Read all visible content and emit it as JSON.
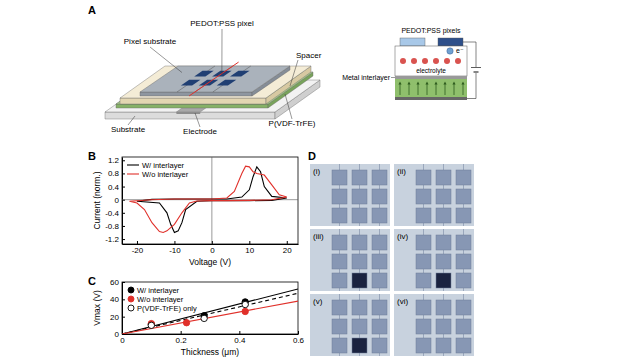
{
  "chart_data": [
    {
      "type": "line",
      "panel_label": "B",
      "x_label": "Voltage (V)",
      "y_label": "Current (norm.)",
      "xlim": [
        -24,
        23
      ],
      "xticks": [
        -20,
        -10,
        0,
        10,
        20
      ],
      "ylim": [
        -1.35,
        1.3
      ],
      "yticks": [
        -1.2,
        -0.8,
        -0.4,
        0,
        0.4,
        0.8,
        1.2
      ],
      "legend": "upper left",
      "series": [
        {
          "name": "W/ interlayer",
          "color": "#000000",
          "x": [
            0,
            4,
            8,
            10,
            11,
            12,
            13,
            14,
            16,
            20,
            16,
            10,
            4,
            0,
            -4,
            -7,
            -8,
            -9,
            -10,
            -11,
            -12,
            -14,
            -20,
            -16,
            -10,
            -4,
            0
          ],
          "values": [
            0.02,
            0.02,
            0.08,
            0.3,
            0.7,
            1.0,
            0.85,
            0.4,
            0.1,
            0.05,
            -0.02,
            -0.03,
            -0.03,
            -0.03,
            -0.05,
            -0.3,
            -0.7,
            -0.95,
            -1.0,
            -0.75,
            -0.4,
            -0.1,
            -0.05,
            0.01,
            0.02,
            0.02,
            0.02
          ]
        },
        {
          "name": "W/o interlayer",
          "color": "#e0302a",
          "x": [
            0,
            4,
            6,
            8,
            9,
            10,
            11,
            12,
            14,
            16,
            18,
            20,
            16,
            10,
            4,
            0,
            -4,
            -6,
            -8,
            -10,
            -12,
            -13,
            -14,
            -16,
            -18,
            -20,
            -22,
            -16,
            -10,
            -4,
            0
          ],
          "values": [
            0.02,
            0.05,
            0.25,
            0.8,
            1.02,
            1.0,
            0.85,
            0.8,
            0.75,
            0.45,
            0.15,
            0.08,
            0.0,
            -0.02,
            -0.03,
            -0.03,
            -0.04,
            -0.1,
            -0.4,
            -0.75,
            -0.95,
            -1.0,
            -0.97,
            -0.7,
            -0.3,
            -0.1,
            -0.05,
            0.0,
            0.02,
            0.02,
            0.02
          ]
        }
      ]
    },
    {
      "type": "scatter",
      "panel_label": "C",
      "x_label": "Thickness (μm)",
      "y_label": "Vmax (V)",
      "xlim": [
        0,
        0.6
      ],
      "xticks": [
        0,
        0.2,
        0.4,
        0.6
      ],
      "ylim": [
        0,
        60
      ],
      "yticks": [
        0,
        20,
        40,
        60
      ],
      "legend": "upper left",
      "series": [
        {
          "type": "line",
          "color": "#000000",
          "line_style": "solid",
          "x": [
            0,
            0.6
          ],
          "values": [
            0,
            52
          ]
        },
        {
          "type": "line",
          "color": "#000000",
          "line_style": "dashed",
          "x": [
            0,
            0.6
          ],
          "values": [
            0,
            47
          ]
        },
        {
          "type": "line",
          "color": "#e0302a",
          "line_style": "solid",
          "x": [
            0,
            0.6
          ],
          "values": [
            0,
            38
          ]
        },
        {
          "name": "W/ interlayer",
          "color": "#000000",
          "marker": "filled_circle",
          "x": [
            0.1,
            0.28,
            0.42
          ],
          "values": [
            11,
            21,
            37
          ]
        },
        {
          "name": "W/o interlayer",
          "color": "#e0302a",
          "marker": "filled_circle",
          "x": [
            0.1,
            0.22,
            0.42
          ],
          "values": [
            12,
            13,
            26
          ]
        },
        {
          "name": "P(VDF-TrFE) only",
          "color": "#000000",
          "marker": "open_circle",
          "x": [
            0.1,
            0.28,
            0.42
          ],
          "values": [
            10,
            18,
            34
          ]
        }
      ]
    }
  ],
  "diagram": {
    "panel_label": "A",
    "labels": {
      "pixel": "PEDOT:PSS pixel",
      "pixel_substrate": "Pixel substrate",
      "spacer": "Spacer",
      "substrate": "Substrate",
      "electrode": "Electrode",
      "ferroelectric": "P(VDF-TrFE)"
    },
    "inset": {
      "pixels": "PEDOT:PSS pixels",
      "electron": "e⁻",
      "electrolyte": "electrolyte",
      "interlayer": "Metal interlayer"
    }
  },
  "photos": {
    "panel_label": "D",
    "panels": [
      {
        "label": "(i)",
        "active_pixel": null
      },
      {
        "label": "(ii)",
        "active_pixel": null
      },
      {
        "label": "(iii)",
        "active_pixel": [
          2,
          1
        ]
      },
      {
        "label": "(iv)",
        "active_pixel": [
          2,
          1
        ]
      },
      {
        "label": "(v)",
        "active_pixel": [
          2,
          1
        ]
      },
      {
        "label": "(vi)",
        "active_pixel": null
      }
    ]
  }
}
